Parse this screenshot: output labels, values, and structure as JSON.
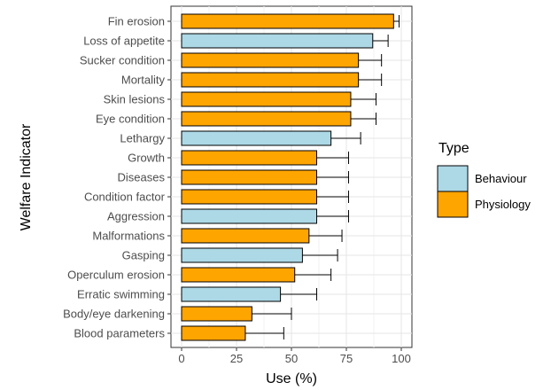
{
  "chart_data": {
    "type": "bar",
    "orientation": "horizontal",
    "xlabel": "Use (%)",
    "ylabel": "Welfare Indicator",
    "xlim": [
      0,
      100
    ],
    "x_ticks": [
      "0",
      "25",
      "50",
      "75",
      "100"
    ],
    "grid": true,
    "legend": {
      "title": "Type",
      "position": "right",
      "entries": [
        {
          "name": "Behaviour",
          "color": "#add8e6"
        },
        {
          "name": "Physiology",
          "color": "#ffa500"
        }
      ]
    },
    "categories": [
      "Fin erosion",
      "Loss of appetite",
      "Sucker condition",
      "Mortality",
      "Skin lesions",
      "Eye condition",
      "Lethargy",
      "Growth",
      "Diseases",
      "Condition factor",
      "Aggression",
      "Malformations",
      "Gasping",
      "Operculum erosion",
      "Erratic swimming",
      "Body/eye darkening",
      "Blood parameters"
    ],
    "values": [
      96.5,
      87,
      80.5,
      80.5,
      77,
      77,
      68,
      61.5,
      61.5,
      61.5,
      61.5,
      58,
      55,
      51.5,
      45,
      32,
      29
    ],
    "error_upper": [
      99,
      94,
      91,
      91,
      88.5,
      88.5,
      81.5,
      76,
      76,
      76,
      76,
      73,
      71,
      68,
      61.5,
      50,
      46.5
    ],
    "types": [
      "Physiology",
      "Behaviour",
      "Physiology",
      "Physiology",
      "Physiology",
      "Physiology",
      "Behaviour",
      "Physiology",
      "Physiology",
      "Physiology",
      "Behaviour",
      "Physiology",
      "Behaviour",
      "Physiology",
      "Behaviour",
      "Physiology",
      "Physiology"
    ]
  }
}
